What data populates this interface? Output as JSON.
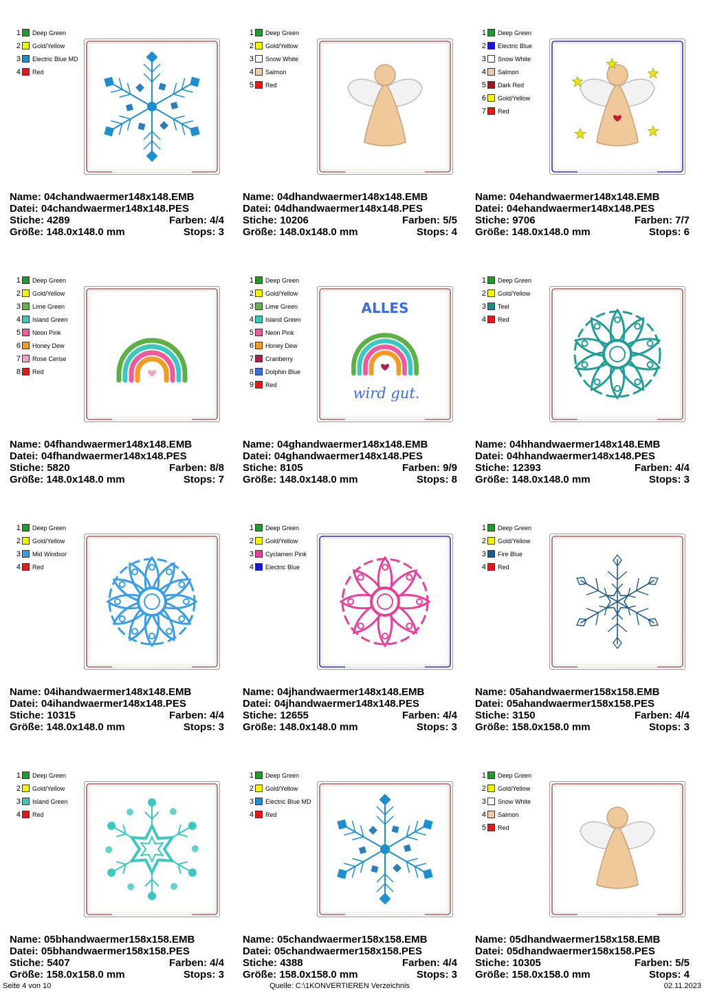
{
  "labels": {
    "name": "Name:",
    "file": "Datei:",
    "stitches": "Stiche:",
    "colors": "Farben:",
    "size": "Größe:",
    "stops": "Stops:"
  },
  "designs": [
    {
      "name": "04chandwaermer148x148.EMB",
      "file": "04chandwaermer148x148.PES",
      "stitches": "4289",
      "colors": "4/4",
      "size": "148.0x148.0 mm",
      "stops": "3",
      "motif": "snowflake-crystal-icon",
      "frame_color": "#b35a5a",
      "threads": [
        {
          "n": "1",
          "name": "Deep Green",
          "hex": "#1a9e2e"
        },
        {
          "n": "2",
          "name": "Gold/Yellow",
          "hex": "#f5f500"
        },
        {
          "n": "3",
          "name": "Electric Blue MD",
          "hex": "#1c8fd0"
        },
        {
          "n": "4",
          "name": "Red",
          "hex": "#f01414"
        }
      ]
    },
    {
      "name": "04dhandwaermer148x148.EMB",
      "file": "04dhandwaermer148x148.PES",
      "stitches": "10206",
      "colors": "5/5",
      "size": "148.0x148.0 mm",
      "stops": "4",
      "motif": "angel-icon",
      "frame_color": "#b35a5a",
      "threads": [
        {
          "n": "1",
          "name": "Deep Green",
          "hex": "#1a9e2e"
        },
        {
          "n": "2",
          "name": "Gold/Yellow",
          "hex": "#f5f500"
        },
        {
          "n": "3",
          "name": "Snow White",
          "hex": "#ffffff"
        },
        {
          "n": "4",
          "name": "Salmon",
          "hex": "#f5c9a6"
        },
        {
          "n": "5",
          "name": "Red",
          "hex": "#f01414"
        }
      ]
    },
    {
      "name": "04ehandwaermer148x148.EMB",
      "file": "04ehandwaermer148x148.PES",
      "stitches": "9706",
      "colors": "7/7",
      "size": "148.0x148.0 mm",
      "stops": "6",
      "motif": "angel-stars-icon",
      "frame_color": "#2a2ad0",
      "threads": [
        {
          "n": "1",
          "name": "Deep Green",
          "hex": "#1a9e2e"
        },
        {
          "n": "2",
          "name": "Electric Blue",
          "hex": "#1414e6"
        },
        {
          "n": "3",
          "name": "Snow White",
          "hex": "#ffffff"
        },
        {
          "n": "4",
          "name": "Salmon",
          "hex": "#f5c9a6"
        },
        {
          "n": "5",
          "name": "Dark Red",
          "hex": "#a0141e"
        },
        {
          "n": "6",
          "name": "Gold/Yellow",
          "hex": "#f5f500"
        },
        {
          "n": "7",
          "name": "Red",
          "hex": "#f01414"
        }
      ]
    },
    {
      "name": "04fhandwaermer148x148.EMB",
      "file": "04fhandwaermer148x148.PES",
      "stitches": "5820",
      "colors": "8/8",
      "size": "148.0x148.0 mm",
      "stops": "7",
      "motif": "rainbow-icon",
      "frame_color": "#b35a5a",
      "threads": [
        {
          "n": "1",
          "name": "Deep Green",
          "hex": "#1a9e2e"
        },
        {
          "n": "2",
          "name": "Gold/Yellow",
          "hex": "#f5f500"
        },
        {
          "n": "3",
          "name": "Lime Green",
          "hex": "#6ab04a"
        },
        {
          "n": "4",
          "name": "Island Green",
          "hex": "#3cc8c0"
        },
        {
          "n": "5",
          "name": "Neon Pink",
          "hex": "#f05a9a"
        },
        {
          "n": "6",
          "name": "Honey Dew",
          "hex": "#f59a1e"
        },
        {
          "n": "7",
          "name": "Rose Cerise",
          "hex": "#f5a0c8"
        },
        {
          "n": "8",
          "name": "Red",
          "hex": "#f01414"
        }
      ]
    },
    {
      "name": "04ghandwaermer148x148.EMB",
      "file": "04ghandwaermer148x148.PES",
      "stitches": "8105",
      "colors": "9/9",
      "size": "148.0x148.0 mm",
      "stops": "8",
      "motif": "rainbow-text-icon",
      "frame_color": "#b35a5a",
      "motif_top": "ALLES",
      "motif_bottom": "wird gut.",
      "threads": [
        {
          "n": "1",
          "name": "Deep Green",
          "hex": "#1a9e2e"
        },
        {
          "n": "2",
          "name": "Gold/Yellow",
          "hex": "#f5f500"
        },
        {
          "n": "3",
          "name": "Lime Green",
          "hex": "#6ab04a"
        },
        {
          "n": "4",
          "name": "Island Green",
          "hex": "#3cc8c0"
        },
        {
          "n": "5",
          "name": "Neon Pink",
          "hex": "#f05a9a"
        },
        {
          "n": "6",
          "name": "Honey Dew",
          "hex": "#f59a1e"
        },
        {
          "n": "7",
          "name": "Cranberry",
          "hex": "#b01e50"
        },
        {
          "n": "8",
          "name": "Dolphin Blue",
          "hex": "#3a6ee0"
        },
        {
          "n": "9",
          "name": "Red",
          "hex": "#f01414"
        }
      ]
    },
    {
      "name": "04hhandwaermer148x148.EMB",
      "file": "04hhandwaermer148x148.PES",
      "stitches": "12393",
      "colors": "4/4",
      "size": "148.0x148.0 mm",
      "stops": "3",
      "motif": "mandala-icon",
      "frame_color": "#b35a5a",
      "motif_color": "#1f9e96",
      "threads": [
        {
          "n": "1",
          "name": "Deep Green",
          "hex": "#1a9e2e"
        },
        {
          "n": "2",
          "name": "Gold/Yellow",
          "hex": "#f5f500"
        },
        {
          "n": "3",
          "name": "Teel",
          "hex": "#1a8a8a"
        },
        {
          "n": "4",
          "name": "Red",
          "hex": "#f01414"
        }
      ]
    },
    {
      "name": "04ihandwaermer148x148.EMB",
      "file": "04ihandwaermer148x148.PES",
      "stitches": "10315",
      "colors": "4/4",
      "size": "148.0x148.0 mm",
      "stops": "3",
      "motif": "mandala-snowflake-icon",
      "frame_color": "#b35a5a",
      "motif_color": "#3a9ee6",
      "threads": [
        {
          "n": "1",
          "name": "Deep Green",
          "hex": "#1a9e2e"
        },
        {
          "n": "2",
          "name": "Gold/Yellow",
          "hex": "#f5f500"
        },
        {
          "n": "3",
          "name": "Mid Windsor",
          "hex": "#3a9ee6"
        },
        {
          "n": "4",
          "name": "Red",
          "hex": "#f01414"
        }
      ]
    },
    {
      "name": "04jhandwaermer148x148.EMB",
      "file": "04jhandwaermer148x148.PES",
      "stitches": "12655",
      "colors": "4/4",
      "size": "148.0x148.0 mm",
      "stops": "3",
      "motif": "mandala-pink-icon",
      "frame_color": "#2a2ad0",
      "motif_color": "#e8409a",
      "threads": [
        {
          "n": "1",
          "name": "Deep Green",
          "hex": "#1a9e2e"
        },
        {
          "n": "2",
          "name": "Gold/Yellow",
          "hex": "#f5f500"
        },
        {
          "n": "3",
          "name": "Cyclamen Pink",
          "hex": "#e8409a"
        },
        {
          "n": "4",
          "name": "Electric Blue",
          "hex": "#1414e6"
        }
      ]
    },
    {
      "name": "05ahandwaermer158x158.EMB",
      "file": "05ahandwaermer158x158.PES",
      "stitches": "3150",
      "colors": "4/4",
      "size": "158.0x158.0 mm",
      "stops": "3",
      "motif": "snowflake-outline-icon",
      "frame_color": "#b35a5a",
      "motif_color": "#1e5a86",
      "threads": [
        {
          "n": "1",
          "name": "Deep Green",
          "hex": "#1a9e2e"
        },
        {
          "n": "2",
          "name": "Gold/Yellow",
          "hex": "#f5f500"
        },
        {
          "n": "3",
          "name": "Fire Blue",
          "hex": "#1e5a86"
        },
        {
          "n": "4",
          "name": "Red",
          "hex": "#f01414"
        }
      ]
    },
    {
      "name": "05bhandwaermer158x158.EMB",
      "file": "05bhandwaermer158x158.PES",
      "stitches": "5407",
      "colors": "4/4",
      "size": "158.0x158.0 mm",
      "stops": "3",
      "motif": "snowflake-star-icon",
      "frame_color": "#b35a5a",
      "motif_color": "#3cc8c0",
      "threads": [
        {
          "n": "1",
          "name": "Deep Green",
          "hex": "#1a9e2e"
        },
        {
          "n": "2",
          "name": "Gold/Yellow",
          "hex": "#f5f500"
        },
        {
          "n": "3",
          "name": "Island Green",
          "hex": "#3cc8c0"
        },
        {
          "n": "4",
          "name": "Red",
          "hex": "#f01414"
        }
      ]
    },
    {
      "name": "05chandwaermer158x158.EMB",
      "file": "05chandwaermer158x158.PES",
      "stitches": "4388",
      "colors": "4/4",
      "size": "158.0x158.0 mm",
      "stops": "3",
      "motif": "snowflake-crystal-icon",
      "frame_color": "#b35a5a",
      "threads": [
        {
          "n": "1",
          "name": "Deep Green",
          "hex": "#1a9e2e"
        },
        {
          "n": "2",
          "name": "Gold/Yellow",
          "hex": "#f5f500"
        },
        {
          "n": "3",
          "name": "Electric Blue MD",
          "hex": "#1c8fd0"
        },
        {
          "n": "4",
          "name": "Red",
          "hex": "#f01414"
        }
      ]
    },
    {
      "name": "05dhandwaermer158x158.EMB",
      "file": "05dhandwaermer158x158.PES",
      "stitches": "10305",
      "colors": "5/5",
      "size": "158.0x158.0 mm",
      "stops": "4",
      "motif": "angel-icon",
      "frame_color": "#b35a5a",
      "threads": [
        {
          "n": "1",
          "name": "Deep Green",
          "hex": "#1a9e2e"
        },
        {
          "n": "2",
          "name": "Gold/Yellow",
          "hex": "#f5f500"
        },
        {
          "n": "3",
          "name": "Snow White",
          "hex": "#ffffff"
        },
        {
          "n": "4",
          "name": "Salmon",
          "hex": "#f5c9a6"
        },
        {
          "n": "5",
          "name": "Red",
          "hex": "#f01414"
        }
      ]
    }
  ],
  "footer": {
    "page": "Seite 4 von 10",
    "source": "Quelle: C:\\1KONVERTIEREN Verzeichnis",
    "date": "02.11.2023"
  }
}
